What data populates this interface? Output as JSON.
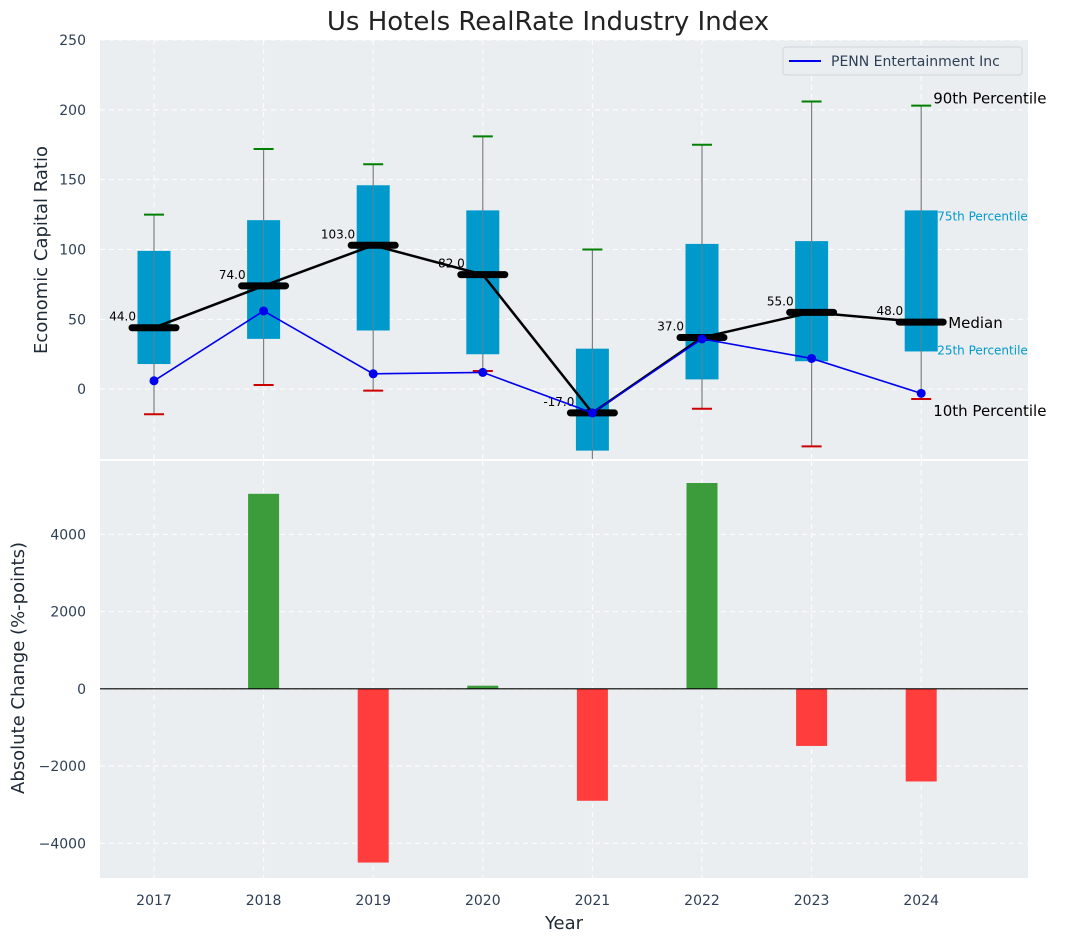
{
  "chart_data": [
    {
      "type": "box",
      "title": "Us Hotels RealRate Industry Index",
      "xlabel": "",
      "ylabel": "Economic Capital Ratio",
      "ylim": [
        -50,
        250
      ],
      "yticks": [
        0,
        50,
        100,
        150,
        200,
        250
      ],
      "grid": true,
      "categories": [
        "2017",
        "2018",
        "2019",
        "2020",
        "2021",
        "2022",
        "2023",
        "2024"
      ],
      "p10": [
        -18,
        3,
        -1,
        13,
        -16,
        -14,
        -41,
        -7
      ],
      "p25": [
        18,
        36,
        42,
        25,
        -44,
        7,
        20,
        27
      ],
      "median": [
        44,
        74,
        103,
        82,
        -17,
        37,
        55,
        48
      ],
      "p75": [
        99,
        121,
        146,
        128,
        29,
        104,
        106,
        128
      ],
      "p90": [
        125,
        172,
        161,
        181,
        100,
        175,
        206,
        203
      ],
      "whisker_top": [
        125,
        172,
        161,
        181,
        100,
        175,
        206,
        203
      ],
      "whisker_bottom": [
        -18,
        3,
        -1,
        13,
        -50,
        -14,
        -41,
        -7
      ],
      "median_labels": [
        "44.0",
        "74.0",
        "103.0",
        "82.0",
        "-17.0",
        "37.0",
        "55.0",
        "48.0"
      ],
      "company_series": {
        "name": "PENN Entertainment Inc",
        "values": [
          6,
          56,
          11,
          12,
          -17,
          36,
          22,
          -3
        ],
        "color": "#0000ee"
      },
      "legend": {
        "position": "top-right",
        "entries": [
          "PENN Entertainment Inc"
        ]
      },
      "annotations": {
        "p90": "90th Percentile",
        "p75": "75th Percentile",
        "median": "Median",
        "p25": "25th Percentile",
        "p10": "10th Percentile"
      },
      "colors": {
        "box": "#0099cc",
        "median": "#000000",
        "p90": "#008000",
        "p10": "#cc0000",
        "whisker": "#808080",
        "background": "#eaeef0"
      }
    },
    {
      "type": "bar",
      "title": "",
      "xlabel": "Year",
      "ylabel": "Absolute Change (%-points)",
      "ylim": [
        -4900,
        5900
      ],
      "yticks": [
        -4000,
        -2000,
        0,
        2000,
        4000
      ],
      "ytick_labels": [
        "−4000",
        "−2000",
        "0",
        "2000",
        "4000"
      ],
      "grid": true,
      "categories": [
        "2017",
        "2018",
        "2019",
        "2020",
        "2021",
        "2022",
        "2023",
        "2024"
      ],
      "values": [
        0,
        5050,
        -4500,
        80,
        -2900,
        5330,
        -1480,
        -2400
      ],
      "colors": {
        "positive": "#3c9c3c",
        "negative": "#ff3d3d",
        "zero_line": "#000000",
        "background": "#eaeef0"
      }
    }
  ]
}
